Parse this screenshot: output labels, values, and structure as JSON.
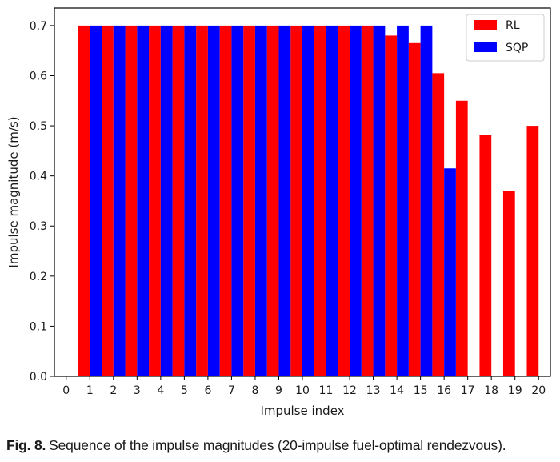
{
  "chart_data": {
    "type": "bar",
    "xlabel": "Impulse index",
    "ylabel": "Impulse magnitude (m/s)",
    "xticks": [
      0,
      1,
      2,
      3,
      4,
      5,
      6,
      7,
      8,
      9,
      10,
      11,
      12,
      13,
      14,
      15,
      16,
      17,
      18,
      19,
      20
    ],
    "yticks": [
      "0.0",
      "0.1",
      "0.2",
      "0.3",
      "0.4",
      "0.5",
      "0.6",
      "0.7"
    ],
    "xlim": [
      -0.5,
      20.5
    ],
    "ylim": [
      0,
      0.735
    ],
    "grid": false,
    "legend_position": "top-right",
    "series": [
      {
        "name": "RL",
        "color": "#ff0000",
        "x": [
          1,
          2,
          3,
          4,
          5,
          6,
          7,
          8,
          9,
          10,
          11,
          12,
          13,
          14,
          15,
          16,
          17,
          18,
          19,
          20
        ],
        "values": [
          0.7,
          0.7,
          0.7,
          0.7,
          0.7,
          0.7,
          0.7,
          0.7,
          0.7,
          0.7,
          0.7,
          0.7,
          0.7,
          0.68,
          0.665,
          0.605,
          0.55,
          0.482,
          0.37,
          0.5
        ]
      },
      {
        "name": "SQP",
        "color": "#0000ff",
        "x": [
          1,
          2,
          3,
          4,
          5,
          6,
          7,
          8,
          9,
          10,
          11,
          12,
          13,
          14,
          15,
          16
        ],
        "values": [
          0.7,
          0.7,
          0.7,
          0.7,
          0.7,
          0.7,
          0.7,
          0.7,
          0.7,
          0.7,
          0.7,
          0.7,
          0.7,
          0.7,
          0.7,
          0.415
        ]
      }
    ]
  },
  "caption": {
    "label": "Fig. 8.",
    "text": "Sequence of the impulse magnitudes (20-impulse fuel-optimal rendezvous)."
  }
}
